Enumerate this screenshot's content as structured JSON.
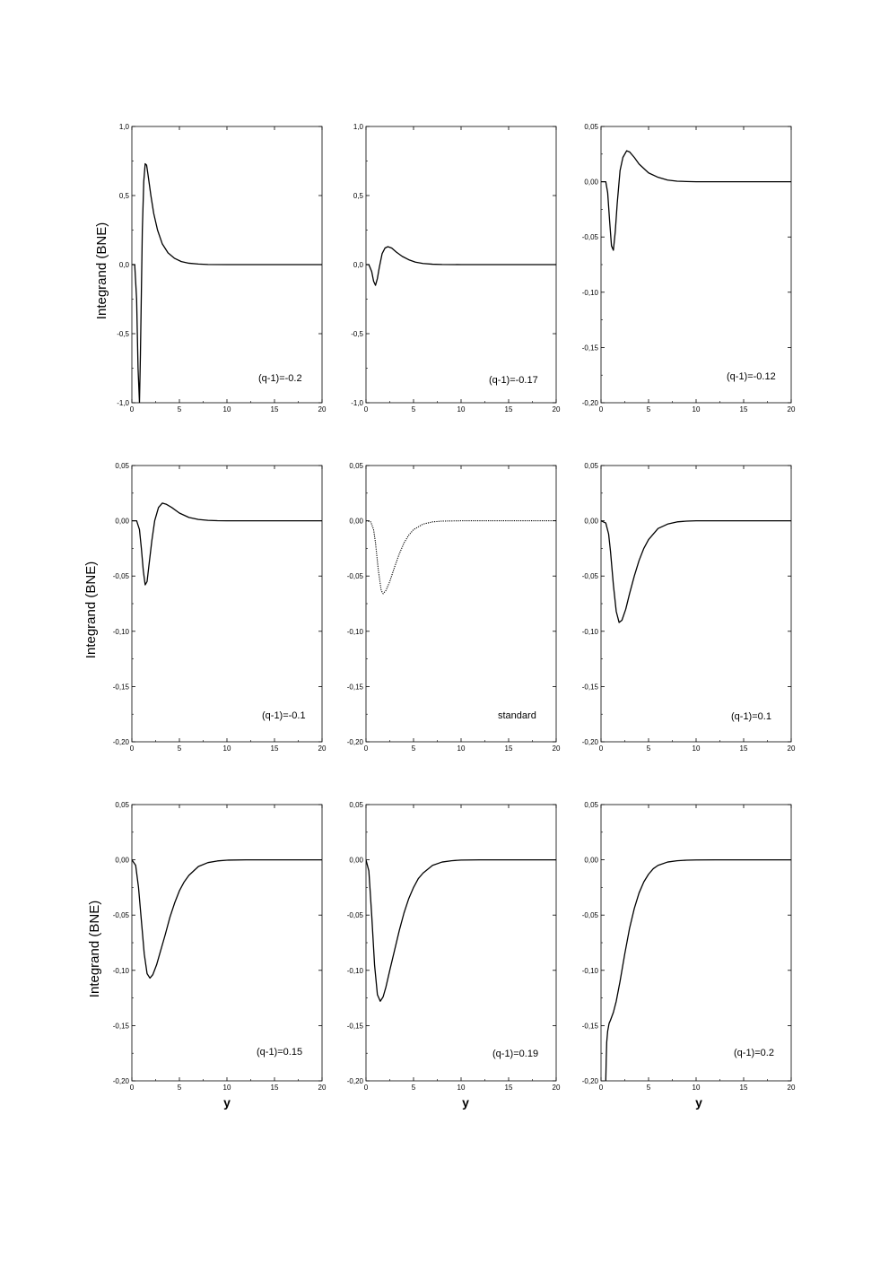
{
  "figure": {
    "ylabels": [
      "Integrand (BNE)",
      "Integrand (BNE)",
      "Integrand (BNE)"
    ],
    "xlabels": [
      "y",
      "y",
      "y"
    ]
  },
  "chart_data": [
    {
      "type": "line",
      "annotation": "(q-1)=-0.2",
      "xlabel": "",
      "ylabel": "Integrand (BNE)",
      "xlim": [
        0,
        20
      ],
      "ylim": [
        -1.0,
        1.0
      ],
      "x_ticks": [
        0,
        5,
        10,
        15,
        20
      ],
      "x_tick_labels": [
        "0",
        "5",
        "10",
        "15",
        "20"
      ],
      "y_ticks": [
        -1.0,
        -0.5,
        0.0,
        0.5,
        1.0
      ],
      "y_tick_labels": [
        "-1,0",
        "-0,5",
        "0,0",
        "0,5",
        "1,0"
      ],
      "line_style": "solid",
      "x": [
        0,
        0.3,
        0.5,
        0.65,
        0.8,
        0.9,
        1.0,
        1.1,
        1.25,
        1.4,
        1.55,
        1.7,
        2.0,
        2.3,
        2.7,
        3.2,
        3.8,
        4.5,
        5.2,
        6.0,
        7.0,
        8.0,
        10.0,
        15.0,
        20.0
      ],
      "y": [
        0,
        0,
        -0.25,
        -0.75,
        -1.0,
        -0.65,
        -0.2,
        0.25,
        0.6,
        0.73,
        0.72,
        0.65,
        0.5,
        0.37,
        0.25,
        0.15,
        0.085,
        0.045,
        0.022,
        0.01,
        0.004,
        0.001,
        0,
        0,
        0
      ]
    },
    {
      "type": "line",
      "annotation": "(q-1)=-0.17",
      "xlabel": "",
      "ylabel": "",
      "xlim": [
        0,
        20
      ],
      "ylim": [
        -1.0,
        1.0
      ],
      "x_ticks": [
        0,
        5,
        10,
        15,
        20
      ],
      "x_tick_labels": [
        "0",
        "5",
        "10",
        "15",
        "20"
      ],
      "y_ticks": [
        -1.0,
        -0.5,
        0.0,
        0.5,
        1.0
      ],
      "y_tick_labels": [
        "-1,0",
        "-0,5",
        "0,0",
        "0,5",
        "1,0"
      ],
      "line_style": "solid",
      "x": [
        0,
        0.3,
        0.6,
        0.8,
        1.0,
        1.2,
        1.4,
        1.7,
        2.0,
        2.3,
        2.7,
        3.2,
        3.8,
        4.5,
        5.2,
        6.0,
        7.0,
        8.0,
        10.0,
        15.0,
        20.0
      ],
      "y": [
        0,
        0,
        -0.05,
        -0.12,
        -0.15,
        -0.1,
        -0.02,
        0.08,
        0.12,
        0.13,
        0.12,
        0.09,
        0.06,
        0.035,
        0.018,
        0.008,
        0.003,
        0.001,
        0,
        0,
        0
      ]
    },
    {
      "type": "line",
      "annotation": "(q-1)=-0.12",
      "xlabel": "",
      "ylabel": "",
      "xlim": [
        0,
        20
      ],
      "ylim": [
        -0.2,
        0.05
      ],
      "x_ticks": [
        0,
        5,
        10,
        15,
        20
      ],
      "x_tick_labels": [
        "0",
        "5",
        "10",
        "15",
        "20"
      ],
      "y_ticks": [
        -0.2,
        -0.15,
        -0.1,
        -0.05,
        0.0,
        0.05
      ],
      "y_tick_labels": [
        "-0,20",
        "-0,15",
        "-0,10",
        "-0,05",
        "0,00",
        "0,05"
      ],
      "line_style": "solid",
      "x": [
        0,
        0.5,
        0.7,
        0.9,
        1.1,
        1.3,
        1.5,
        1.7,
        2.0,
        2.3,
        2.7,
        3.0,
        3.5,
        4.0,
        5.0,
        6.0,
        7.0,
        8.0,
        9.0,
        10.0,
        15.0,
        20.0
      ],
      "y": [
        0,
        0,
        -0.01,
        -0.035,
        -0.058,
        -0.062,
        -0.045,
        -0.02,
        0.01,
        0.022,
        0.028,
        0.027,
        0.022,
        0.016,
        0.008,
        0.004,
        0.0015,
        0.0005,
        0.0002,
        0,
        0,
        0
      ]
    },
    {
      "type": "line",
      "annotation": "(q-1)=-0.1",
      "xlabel": "",
      "ylabel": "Integrand (BNE)",
      "xlim": [
        0,
        20
      ],
      "ylim": [
        -0.2,
        0.05
      ],
      "x_ticks": [
        0,
        5,
        10,
        15,
        20
      ],
      "x_tick_labels": [
        "0",
        "5",
        "10",
        "15",
        "20"
      ],
      "y_ticks": [
        -0.2,
        -0.15,
        -0.1,
        -0.05,
        0.0,
        0.05
      ],
      "y_tick_labels": [
        "-0,20",
        "-0,15",
        "-0,10",
        "-0,05",
        "0,00",
        "0,05"
      ],
      "line_style": "solid",
      "x": [
        0,
        0.5,
        0.8,
        1.0,
        1.2,
        1.4,
        1.6,
        1.8,
        2.1,
        2.4,
        2.8,
        3.2,
        3.6,
        4.2,
        5.0,
        6.0,
        7.0,
        8.0,
        9.0,
        10.0,
        15.0,
        20.0
      ],
      "y": [
        0,
        0,
        -0.008,
        -0.025,
        -0.045,
        -0.058,
        -0.055,
        -0.04,
        -0.018,
        0.0,
        0.012,
        0.016,
        0.015,
        0.012,
        0.007,
        0.003,
        0.0012,
        0.0004,
        0.0001,
        0,
        0,
        0
      ]
    },
    {
      "type": "line",
      "annotation": "standard",
      "xlabel": "",
      "ylabel": "",
      "xlim": [
        0,
        20
      ],
      "ylim": [
        -0.2,
        0.05
      ],
      "x_ticks": [
        0,
        5,
        10,
        15,
        20
      ],
      "x_tick_labels": [
        "0",
        "5",
        "10",
        "15",
        "20"
      ],
      "y_ticks": [
        -0.2,
        -0.15,
        -0.1,
        -0.05,
        0.0,
        0.05
      ],
      "y_tick_labels": [
        "-0,20",
        "-0,15",
        "-0,10",
        "-0,05",
        "0,00",
        "0,05"
      ],
      "line_style": "dotted",
      "x": [
        0,
        0.5,
        0.8,
        1.0,
        1.3,
        1.6,
        1.8,
        2.1,
        2.5,
        3.0,
        3.5,
        4.0,
        4.5,
        5.0,
        6.0,
        7.0,
        8.0,
        10.0,
        12.0,
        15.0,
        20.0
      ],
      "y": [
        0,
        -0.001,
        -0.008,
        -0.02,
        -0.045,
        -0.063,
        -0.066,
        -0.063,
        -0.055,
        -0.042,
        -0.03,
        -0.02,
        -0.013,
        -0.008,
        -0.003,
        -0.001,
        -0.0003,
        0,
        0,
        0,
        0
      ]
    },
    {
      "type": "line",
      "annotation": "(q-1)=0.1",
      "xlabel": "",
      "ylabel": "",
      "xlim": [
        0,
        20
      ],
      "ylim": [
        -0.2,
        0.05
      ],
      "x_ticks": [
        0,
        5,
        10,
        15,
        20
      ],
      "x_tick_labels": [
        "0",
        "5",
        "10",
        "15",
        "20"
      ],
      "y_ticks": [
        -0.2,
        -0.15,
        -0.1,
        -0.05,
        0.0,
        0.05
      ],
      "y_tick_labels": [
        "-0,20",
        "-0,15",
        "-0,10",
        "-0,05",
        "0,00",
        "0,05"
      ],
      "line_style": "solid",
      "x": [
        0,
        0.5,
        0.8,
        1.0,
        1.3,
        1.6,
        1.9,
        2.2,
        2.6,
        3.0,
        3.5,
        4.0,
        4.5,
        5.0,
        6.0,
        7.0,
        8.0,
        9.0,
        10.0,
        12.0,
        15.0,
        20.0
      ],
      "y": [
        0,
        -0.002,
        -0.012,
        -0.028,
        -0.058,
        -0.082,
        -0.092,
        -0.09,
        -0.08,
        -0.066,
        -0.05,
        -0.036,
        -0.025,
        -0.017,
        -0.007,
        -0.003,
        -0.001,
        -0.0003,
        0,
        0,
        0,
        0
      ]
    },
    {
      "type": "line",
      "annotation": "(q-1)=0.15",
      "xlabel": "y",
      "ylabel": "Integrand (BNE)",
      "xlim": [
        0,
        20
      ],
      "ylim": [
        -0.2,
        0.05
      ],
      "x_ticks": [
        0,
        5,
        10,
        15,
        20
      ],
      "x_tick_labels": [
        "0",
        "5",
        "10",
        "15",
        "20"
      ],
      "y_ticks": [
        -0.2,
        -0.15,
        -0.1,
        -0.05,
        0.0,
        0.05
      ],
      "y_tick_labels": [
        "-0,20",
        "-0,15",
        "-0,10",
        "-0,05",
        "0,00",
        "0,05"
      ],
      "line_style": "solid",
      "x": [
        0,
        0.4,
        0.7,
        1.0,
        1.3,
        1.6,
        1.9,
        2.2,
        2.6,
        3.0,
        3.5,
        4.0,
        4.5,
        5.0,
        5.5,
        6.0,
        7.0,
        8.0,
        9.0,
        10.0,
        12.0,
        15.0,
        20.0
      ],
      "y": [
        0,
        -0.005,
        -0.025,
        -0.055,
        -0.085,
        -0.103,
        -0.107,
        -0.104,
        -0.095,
        -0.083,
        -0.068,
        -0.052,
        -0.039,
        -0.028,
        -0.02,
        -0.014,
        -0.006,
        -0.0025,
        -0.001,
        -0.0003,
        0,
        0,
        0
      ]
    },
    {
      "type": "line",
      "annotation": "(q-1)=0.19",
      "xlabel": "y",
      "ylabel": "",
      "xlim": [
        0,
        20
      ],
      "ylim": [
        -0.2,
        0.05
      ],
      "x_ticks": [
        0,
        5,
        10,
        15,
        20
      ],
      "x_tick_labels": [
        "0",
        "5",
        "10",
        "15",
        "20"
      ],
      "y_ticks": [
        -0.2,
        -0.15,
        -0.1,
        -0.05,
        0.0,
        0.05
      ],
      "y_tick_labels": [
        "-0,20",
        "-0,15",
        "-0,10",
        "-0,05",
        "0,00",
        "0,05"
      ],
      "line_style": "solid",
      "x": [
        0,
        0.3,
        0.6,
        0.9,
        1.2,
        1.5,
        1.8,
        2.1,
        2.5,
        3.0,
        3.5,
        4.0,
        4.5,
        5.0,
        5.5,
        6.0,
        7.0,
        8.0,
        9.0,
        10.0,
        12.0,
        15.0,
        20.0
      ],
      "y": [
        0,
        -0.01,
        -0.05,
        -0.095,
        -0.122,
        -0.128,
        -0.124,
        -0.115,
        -0.1,
        -0.082,
        -0.064,
        -0.048,
        -0.035,
        -0.025,
        -0.017,
        -0.012,
        -0.005,
        -0.002,
        -0.0008,
        -0.0002,
        0,
        0,
        0
      ]
    },
    {
      "type": "line",
      "annotation": "(q-1)=0.2",
      "xlabel": "y",
      "ylabel": "",
      "xlim": [
        0,
        20
      ],
      "ylim": [
        -0.2,
        0.05
      ],
      "x_ticks": [
        0,
        5,
        10,
        15,
        20
      ],
      "x_tick_labels": [
        "0",
        "5",
        "10",
        "15",
        "20"
      ],
      "y_ticks": [
        -0.2,
        -0.15,
        -0.1,
        -0.05,
        0.0,
        0.05
      ],
      "y_tick_labels": [
        "-0,20",
        "-0,15",
        "-0,10",
        "-0,05",
        "0,00",
        "0,05"
      ],
      "line_style": "solid",
      "x": [
        0.5,
        0.55,
        0.6,
        0.7,
        0.85,
        1.0,
        1.3,
        1.6,
        2.0,
        2.5,
        3.0,
        3.5,
        4.0,
        4.5,
        5.0,
        5.5,
        6.0,
        7.0,
        8.0,
        9.0,
        10.0,
        12.0,
        15.0,
        20.0
      ],
      "y": [
        -0.2,
        -0.18,
        -0.165,
        -0.155,
        -0.148,
        -0.145,
        -0.138,
        -0.128,
        -0.11,
        -0.085,
        -0.062,
        -0.044,
        -0.03,
        -0.02,
        -0.013,
        -0.008,
        -0.005,
        -0.002,
        -0.0008,
        -0.0003,
        -0.0001,
        0,
        0,
        0
      ]
    }
  ]
}
